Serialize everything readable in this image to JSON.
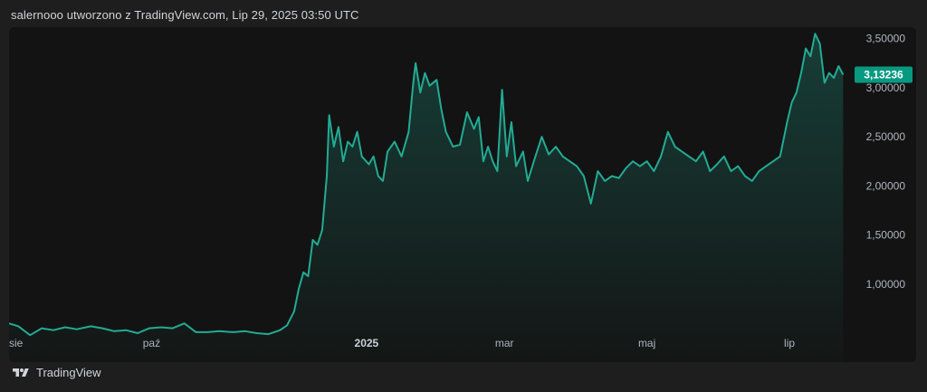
{
  "header": {
    "title": "salernooo utworzono z TradingView.com, Lip 29, 2025 03:50 UTC"
  },
  "footer": {
    "brand": "TradingView"
  },
  "colors": {
    "line": "#22ab94",
    "price_badge": "#089981",
    "background": "#131313"
  },
  "chart_data": {
    "type": "area",
    "title": "",
    "xlabel": "",
    "ylabel": "",
    "ylim": [
      0.5,
      3.58
    ],
    "y_ticks": [
      {
        "value": 3.5,
        "label": "3,50000"
      },
      {
        "value": 3.0,
        "label": "3,00000"
      },
      {
        "value": 2.5,
        "label": "2,50000"
      },
      {
        "value": 2.0,
        "label": "2,00000"
      },
      {
        "value": 1.5,
        "label": "1,50000"
      },
      {
        "value": 1.0,
        "label": "1,00000"
      }
    ],
    "x_ticks": [
      {
        "label": "sie",
        "date": "2024-08-01",
        "bold": false
      },
      {
        "label": "paź",
        "date": "2024-10-01",
        "bold": false
      },
      {
        "label": "2025",
        "date": "2025-01-01",
        "bold": true
      },
      {
        "label": "mar",
        "date": "2025-03-01",
        "bold": false
      },
      {
        "label": "maj",
        "date": "2025-05-01",
        "bold": false
      },
      {
        "label": "lip",
        "date": "2025-07-01",
        "bold": false
      }
    ],
    "last_price": {
      "value": 3.13236,
      "label": "3,13236"
    },
    "series": [
      {
        "points": [
          [
            "2024-08-01",
            0.6
          ],
          [
            "2024-08-05",
            0.57
          ],
          [
            "2024-08-10",
            0.48
          ],
          [
            "2024-08-15",
            0.55
          ],
          [
            "2024-08-20",
            0.53
          ],
          [
            "2024-08-25",
            0.56
          ],
          [
            "2024-08-30",
            0.54
          ],
          [
            "2024-09-05",
            0.57
          ],
          [
            "2024-09-10",
            0.55
          ],
          [
            "2024-09-15",
            0.52
          ],
          [
            "2024-09-20",
            0.53
          ],
          [
            "2024-09-25",
            0.5
          ],
          [
            "2024-09-30",
            0.55
          ],
          [
            "2024-10-05",
            0.56
          ],
          [
            "2024-10-10",
            0.55
          ],
          [
            "2024-10-15",
            0.6
          ],
          [
            "2024-10-20",
            0.51
          ],
          [
            "2024-10-25",
            0.51
          ],
          [
            "2024-10-30",
            0.52
          ],
          [
            "2024-11-05",
            0.51
          ],
          [
            "2024-11-10",
            0.52
          ],
          [
            "2024-11-15",
            0.5
          ],
          [
            "2024-11-20",
            0.49
          ],
          [
            "2024-11-25",
            0.53
          ],
          [
            "2024-11-28",
            0.58
          ],
          [
            "2024-12-01",
            0.72
          ],
          [
            "2024-12-03",
            0.95
          ],
          [
            "2024-12-05",
            1.12
          ],
          [
            "2024-12-07",
            1.08
          ],
          [
            "2024-12-09",
            1.45
          ],
          [
            "2024-12-11",
            1.4
          ],
          [
            "2024-12-13",
            1.55
          ],
          [
            "2024-12-15",
            2.1
          ],
          [
            "2024-12-16",
            2.72
          ],
          [
            "2024-12-18",
            2.4
          ],
          [
            "2024-12-20",
            2.6
          ],
          [
            "2024-12-22",
            2.25
          ],
          [
            "2024-12-24",
            2.45
          ],
          [
            "2024-12-26",
            2.4
          ],
          [
            "2024-12-28",
            2.55
          ],
          [
            "2024-12-30",
            2.3
          ],
          [
            "2025-01-02",
            2.22
          ],
          [
            "2025-01-04",
            2.3
          ],
          [
            "2025-01-06",
            2.1
          ],
          [
            "2025-01-08",
            2.05
          ],
          [
            "2025-01-10",
            2.35
          ],
          [
            "2025-01-13",
            2.45
          ],
          [
            "2025-01-16",
            2.3
          ],
          [
            "2025-01-19",
            2.55
          ],
          [
            "2025-01-21",
            3.05
          ],
          [
            "2025-01-22",
            3.25
          ],
          [
            "2025-01-24",
            2.95
          ],
          [
            "2025-01-26",
            3.15
          ],
          [
            "2025-01-28",
            3.02
          ],
          [
            "2025-01-31",
            3.08
          ],
          [
            "2025-02-02",
            2.78
          ],
          [
            "2025-02-04",
            2.55
          ],
          [
            "2025-02-07",
            2.4
          ],
          [
            "2025-02-10",
            2.42
          ],
          [
            "2025-02-13",
            2.75
          ],
          [
            "2025-02-16",
            2.58
          ],
          [
            "2025-02-18",
            2.7
          ],
          [
            "2025-02-20",
            2.25
          ],
          [
            "2025-02-22",
            2.4
          ],
          [
            "2025-02-24",
            2.25
          ],
          [
            "2025-02-26",
            2.15
          ],
          [
            "2025-02-28",
            2.98
          ],
          [
            "2025-03-02",
            2.3
          ],
          [
            "2025-03-04",
            2.65
          ],
          [
            "2025-03-06",
            2.2
          ],
          [
            "2025-03-09",
            2.35
          ],
          [
            "2025-03-11",
            2.05
          ],
          [
            "2025-03-14",
            2.28
          ],
          [
            "2025-03-17",
            2.5
          ],
          [
            "2025-03-20",
            2.32
          ],
          [
            "2025-03-23",
            2.4
          ],
          [
            "2025-03-26",
            2.3
          ],
          [
            "2025-03-29",
            2.25
          ],
          [
            "2025-04-01",
            2.2
          ],
          [
            "2025-04-04",
            2.1
          ],
          [
            "2025-04-07",
            1.82
          ],
          [
            "2025-04-10",
            2.15
          ],
          [
            "2025-04-13",
            2.05
          ],
          [
            "2025-04-16",
            2.1
          ],
          [
            "2025-04-19",
            2.08
          ],
          [
            "2025-04-22",
            2.18
          ],
          [
            "2025-04-25",
            2.25
          ],
          [
            "2025-04-28",
            2.2
          ],
          [
            "2025-05-01",
            2.25
          ],
          [
            "2025-05-04",
            2.15
          ],
          [
            "2025-05-07",
            2.3
          ],
          [
            "2025-05-10",
            2.55
          ],
          [
            "2025-05-13",
            2.4
          ],
          [
            "2025-05-16",
            2.35
          ],
          [
            "2025-05-19",
            2.3
          ],
          [
            "2025-05-22",
            2.25
          ],
          [
            "2025-05-25",
            2.35
          ],
          [
            "2025-05-28",
            2.15
          ],
          [
            "2025-05-31",
            2.22
          ],
          [
            "2025-06-03",
            2.3
          ],
          [
            "2025-06-06",
            2.15
          ],
          [
            "2025-06-09",
            2.2
          ],
          [
            "2025-06-12",
            2.1
          ],
          [
            "2025-06-15",
            2.05
          ],
          [
            "2025-06-18",
            2.15
          ],
          [
            "2025-06-21",
            2.2
          ],
          [
            "2025-06-24",
            2.25
          ],
          [
            "2025-06-27",
            2.3
          ],
          [
            "2025-06-30",
            2.65
          ],
          [
            "2025-07-02",
            2.85
          ],
          [
            "2025-07-04",
            2.95
          ],
          [
            "2025-07-06",
            3.15
          ],
          [
            "2025-07-08",
            3.4
          ],
          [
            "2025-07-10",
            3.32
          ],
          [
            "2025-07-12",
            3.55
          ],
          [
            "2025-07-14",
            3.45
          ],
          [
            "2025-07-16",
            3.05
          ],
          [
            "2025-07-18",
            3.15
          ],
          [
            "2025-07-20",
            3.1
          ],
          [
            "2025-07-22",
            3.22
          ],
          [
            "2025-07-24",
            3.13236
          ]
        ]
      }
    ]
  }
}
